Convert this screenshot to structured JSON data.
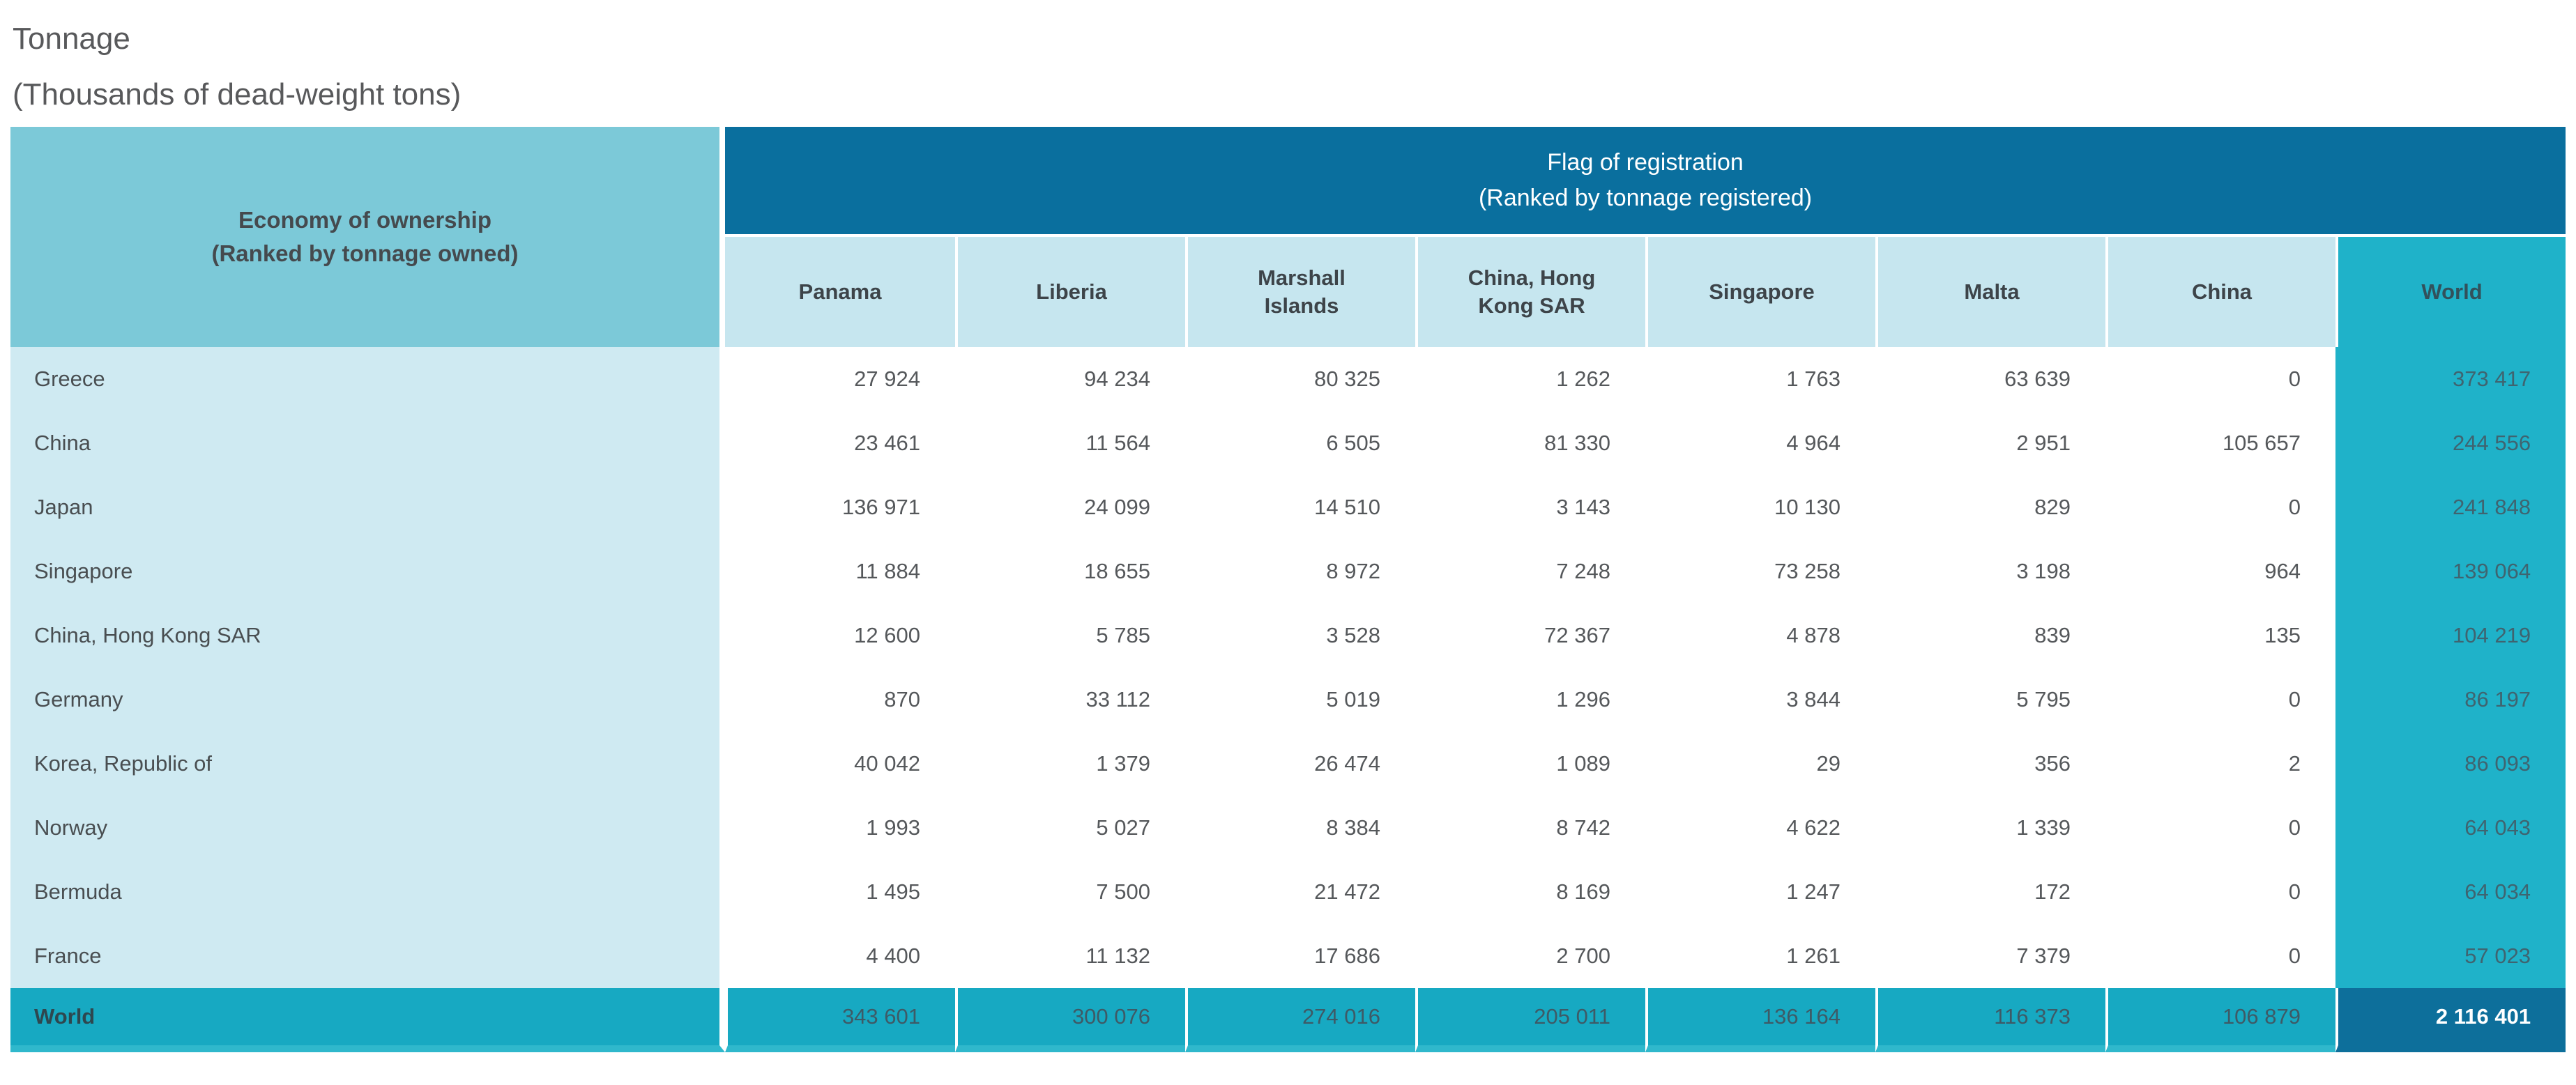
{
  "chart_data": {
    "type": "table",
    "title": "Tonnage",
    "subtitle": "(Thousands of dead-weight tons)",
    "corner_header": {
      "line1": "Economy of ownership",
      "line2": "(Ranked by tonnage owned)"
    },
    "column_group_header": {
      "line1": "Flag of registration",
      "line2": "(Ranked by tonnage registered)"
    },
    "columns": [
      "Panama",
      "Liberia",
      "Marshall\nIslands",
      "China, Hong\nKong SAR",
      "Singapore",
      "Malta",
      "China",
      "World"
    ],
    "rows": [
      {
        "label": "Greece",
        "values": [
          "27 924",
          "94 234",
          "80 325",
          "1 262",
          "1 763",
          "63 639",
          "0",
          "373 417"
        ]
      },
      {
        "label": "China",
        "values": [
          "23 461",
          "11 564",
          "6 505",
          "81 330",
          "4 964",
          "2 951",
          "105 657",
          "244 556"
        ]
      },
      {
        "label": "Japan",
        "values": [
          "136 971",
          "24 099",
          "14 510",
          "3 143",
          "10 130",
          "829",
          "0",
          "241 848"
        ]
      },
      {
        "label": "Singapore",
        "values": [
          "11 884",
          "18 655",
          "8 972",
          "7 248",
          "73 258",
          "3 198",
          "964",
          "139 064"
        ]
      },
      {
        "label": "China, Hong Kong SAR",
        "values": [
          "12 600",
          "5 785",
          "3 528",
          "72 367",
          "4 878",
          "839",
          "135",
          "104 219"
        ]
      },
      {
        "label": "Germany",
        "values": [
          "870",
          "33 112",
          "5 019",
          "1 296",
          "3 844",
          "5 795",
          "0",
          "86 197"
        ]
      },
      {
        "label": "Korea, Republic of",
        "values": [
          "40 042",
          "1 379",
          "26 474",
          "1 089",
          "29",
          "356",
          "2",
          "86 093"
        ]
      },
      {
        "label": "Norway",
        "values": [
          "1 993",
          "5 027",
          "8 384",
          "8 742",
          "4 622",
          "1 339",
          "0",
          "64 043"
        ]
      },
      {
        "label": "Bermuda",
        "values": [
          "1 495",
          "7 500",
          "21 472",
          "8 169",
          "1 247",
          "172",
          "0",
          "64 034"
        ]
      },
      {
        "label": "France",
        "values": [
          "4 400",
          "11 132",
          "17 686",
          "2 700",
          "1 261",
          "7 379",
          "0",
          "57 023"
        ]
      }
    ],
    "total_row": {
      "label": "World",
      "values": [
        "343 601",
        "300 076",
        "274 016",
        "205 011",
        "136 164",
        "116 373",
        "106 879",
        "2 116 401"
      ]
    },
    "number_format": "space-grouped thousands"
  },
  "colors": {
    "column_group_header_bg": "#0a6f9e",
    "corner_header_bg": "#7cc9d8",
    "subheader_bg": "#c6e6ef",
    "row_label_bg": "#cfeaf2",
    "world_column_bg": "#1fb2c9",
    "total_row_bg": "#17a9c2",
    "grand_total_bg": "#0d6f9b",
    "table_bottom_border": "#2fb8cc"
  }
}
